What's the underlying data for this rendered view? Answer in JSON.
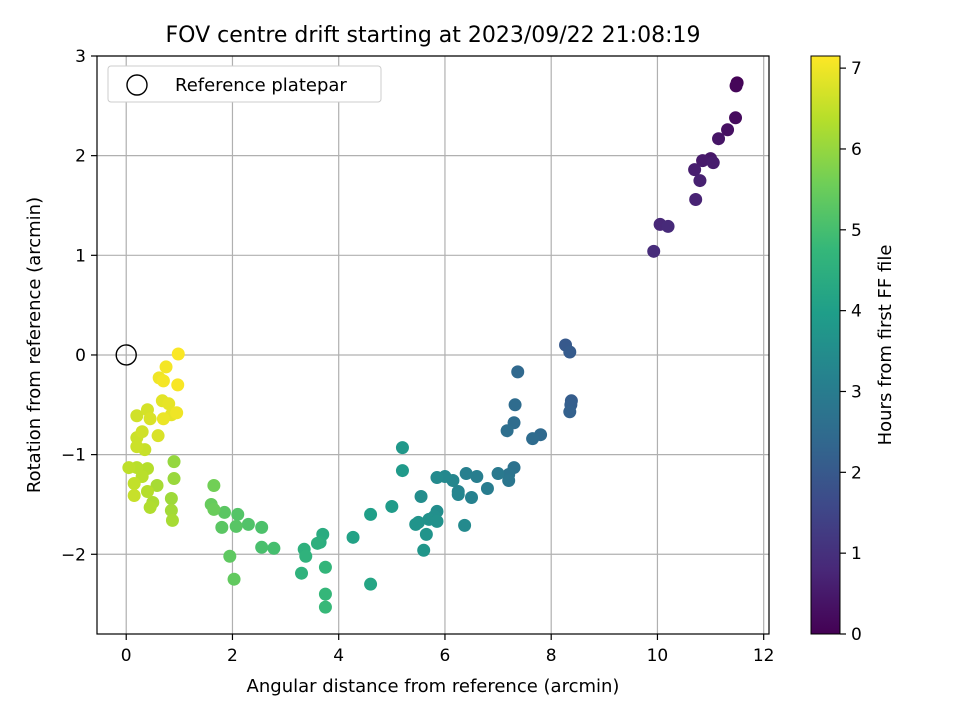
{
  "chart_data": {
    "type": "scatter",
    "title": "FOV centre drift starting at 2023/09/22 21:08:19",
    "xlabel": "Angular distance from reference (arcmin)",
    "ylabel": "Rotation from reference (arcmin)",
    "xlim": [
      -0.55,
      12.1
    ],
    "ylim": [
      -2.8,
      3.0
    ],
    "xticks": [
      0,
      2,
      4,
      6,
      8,
      10,
      12
    ],
    "yticks": [
      -2,
      -1,
      0,
      1,
      2,
      3
    ],
    "grid": true,
    "legend": {
      "placement": "top-left",
      "entries": [
        "Reference platepar"
      ]
    },
    "reference_point": {
      "x": 0,
      "y": 0,
      "marker": "hollow-circle"
    },
    "colorbar": {
      "label": "Hours from first FF file",
      "range": [
        0,
        7.15
      ],
      "ticks": [
        0,
        1,
        2,
        3,
        4,
        5,
        6,
        7
      ],
      "colormap": "viridis"
    },
    "colormap_stops": [
      "#440154",
      "#482878",
      "#3e4989",
      "#31688e",
      "#26828e",
      "#1f9e89",
      "#35b779",
      "#6ece58",
      "#b5de2b",
      "#fde725"
    ],
    "points": [
      [
        11.5,
        2.73,
        0.05
      ],
      [
        11.48,
        2.7,
        0.1
      ],
      [
        11.47,
        2.38,
        0.2
      ],
      [
        11.32,
        2.26,
        0.3
      ],
      [
        11.15,
        2.17,
        0.4
      ],
      [
        11.0,
        1.97,
        0.45
      ],
      [
        10.85,
        1.95,
        0.5
      ],
      [
        11.05,
        1.93,
        0.55
      ],
      [
        10.7,
        1.86,
        0.6
      ],
      [
        10.8,
        1.75,
        0.65
      ],
      [
        10.72,
        1.56,
        0.7
      ],
      [
        10.05,
        1.31,
        0.8
      ],
      [
        10.2,
        1.29,
        0.85
      ],
      [
        9.93,
        1.04,
        0.9
      ],
      [
        8.27,
        0.1,
        2.0
      ],
      [
        8.35,
        0.03,
        2.05
      ],
      [
        8.38,
        -0.46,
        2.1
      ],
      [
        8.37,
        -0.5,
        2.15
      ],
      [
        8.35,
        -0.57,
        2.2
      ],
      [
        7.37,
        -0.17,
        2.4
      ],
      [
        7.32,
        -0.5,
        2.5
      ],
      [
        7.3,
        -0.68,
        2.55
      ],
      [
        7.17,
        -0.76,
        2.6
      ],
      [
        7.8,
        -0.8,
        2.45
      ],
      [
        7.65,
        -0.84,
        2.5
      ],
      [
        7.3,
        -1.13,
        2.7
      ],
      [
        7.2,
        -1.2,
        2.75
      ],
      [
        7.2,
        -1.26,
        2.8
      ],
      [
        7.0,
        -1.19,
        2.9
      ],
      [
        6.8,
        -1.34,
        3.0
      ],
      [
        6.6,
        -1.22,
        3.05
      ],
      [
        6.4,
        -1.19,
        3.1
      ],
      [
        6.5,
        -1.43,
        3.15
      ],
      [
        6.25,
        -1.37,
        3.2
      ],
      [
        6.25,
        -1.4,
        3.25
      ],
      [
        6.15,
        -1.26,
        3.3
      ],
      [
        6.0,
        -1.22,
        3.35
      ],
      [
        5.85,
        -1.23,
        3.4
      ],
      [
        6.37,
        -1.71,
        3.4
      ],
      [
        5.55,
        -1.42,
        3.5
      ],
      [
        5.85,
        -1.57,
        3.5
      ],
      [
        5.8,
        -1.62,
        3.55
      ],
      [
        5.7,
        -1.65,
        3.6
      ],
      [
        5.85,
        -1.67,
        3.6
      ],
      [
        5.5,
        -1.68,
        3.65
      ],
      [
        5.45,
        -1.7,
        3.7
      ],
      [
        5.65,
        -1.8,
        3.7
      ],
      [
        5.6,
        -1.96,
        3.75
      ],
      [
        5.2,
        -0.93,
        3.8
      ],
      [
        5.2,
        -1.16,
        3.85
      ],
      [
        5.0,
        -1.52,
        3.9
      ],
      [
        4.6,
        -1.6,
        4.0
      ],
      [
        4.27,
        -1.83,
        4.1
      ],
      [
        4.6,
        -2.3,
        4.2
      ],
      [
        3.7,
        -1.8,
        4.4
      ],
      [
        3.65,
        -1.88,
        4.45
      ],
      [
        3.6,
        -1.89,
        4.5
      ],
      [
        3.35,
        -1.95,
        4.55
      ],
      [
        3.38,
        -2.02,
        4.6
      ],
      [
        3.3,
        -2.19,
        4.6
      ],
      [
        3.75,
        -2.13,
        4.7
      ],
      [
        3.75,
        -2.4,
        4.75
      ],
      [
        3.75,
        -2.53,
        4.8
      ],
      [
        2.78,
        -1.94,
        5.0
      ],
      [
        2.55,
        -1.93,
        5.05
      ],
      [
        2.55,
        -1.73,
        5.1
      ],
      [
        2.3,
        -1.7,
        5.15
      ],
      [
        2.1,
        -1.6,
        5.2
      ],
      [
        2.07,
        -1.72,
        5.25
      ],
      [
        1.85,
        -1.58,
        5.3
      ],
      [
        1.8,
        -1.73,
        5.3
      ],
      [
        1.95,
        -2.02,
        5.35
      ],
      [
        2.03,
        -2.25,
        5.4
      ],
      [
        1.6,
        -1.5,
        5.45
      ],
      [
        1.65,
        -1.55,
        5.5
      ],
      [
        1.65,
        -1.31,
        5.6
      ],
      [
        0.9,
        -1.07,
        6.0
      ],
      [
        0.9,
        -1.24,
        6.05
      ],
      [
        0.85,
        -1.44,
        6.1
      ],
      [
        0.85,
        -1.56,
        6.15
      ],
      [
        0.87,
        -1.66,
        6.2
      ],
      [
        0.58,
        -1.31,
        6.2
      ],
      [
        0.5,
        -1.48,
        6.25
      ],
      [
        0.45,
        -1.53,
        6.3
      ],
      [
        0.4,
        -1.37,
        6.35
      ],
      [
        0.4,
        -1.14,
        6.35
      ],
      [
        0.3,
        -1.22,
        6.4
      ],
      [
        0.2,
        -1.13,
        6.4
      ],
      [
        0.05,
        -1.13,
        6.45
      ],
      [
        0.15,
        -1.29,
        6.5
      ],
      [
        0.15,
        -1.41,
        6.55
      ],
      [
        0.35,
        -0.95,
        6.55
      ],
      [
        0.2,
        -0.92,
        6.6
      ],
      [
        0.2,
        -0.83,
        6.6
      ],
      [
        0.3,
        -0.77,
        6.65
      ],
      [
        0.2,
        -0.61,
        6.65
      ],
      [
        0.4,
        -0.55,
        6.7
      ],
      [
        0.45,
        -0.64,
        6.75
      ],
      [
        0.6,
        -0.81,
        6.75
      ],
      [
        0.68,
        -0.46,
        6.85
      ],
      [
        0.8,
        -0.49,
        6.9
      ],
      [
        0.85,
        -0.6,
        6.9
      ],
      [
        0.7,
        -0.64,
        6.95
      ],
      [
        0.95,
        -0.58,
        7.0
      ],
      [
        0.62,
        -0.23,
        7.0
      ],
      [
        0.7,
        -0.26,
        7.05
      ],
      [
        0.75,
        -0.12,
        7.05
      ],
      [
        0.97,
        -0.3,
        7.1
      ],
      [
        0.98,
        0.01,
        7.12
      ]
    ]
  }
}
